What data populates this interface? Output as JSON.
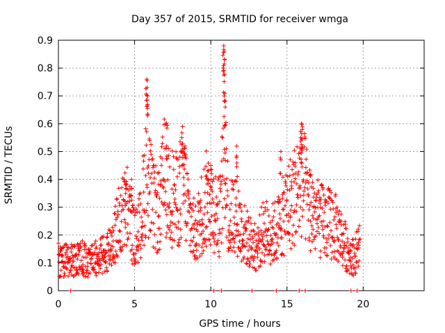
{
  "chart_data": {
    "type": "scatter",
    "title": "Day 357 of 2015, SRMTID for receiver wmga",
    "xlabel": "GPS time / hours",
    "ylabel": "SRMTID / TECUs",
    "xlim": [
      0,
      24
    ],
    "ylim": [
      0,
      0.9
    ],
    "xticks": [
      0,
      5,
      10,
      15,
      20
    ],
    "xtick_labels": [
      "0",
      "5",
      "10",
      "15",
      "20"
    ],
    "yticks": [
      0,
      0.1,
      0.2,
      0.3,
      0.4,
      0.5,
      0.6,
      0.7,
      0.8,
      0.9
    ],
    "ytick_labels": [
      "0",
      "0.1",
      "0.2",
      "0.3",
      "0.4",
      "0.5",
      "0.6",
      "0.7",
      "0.8",
      "0.9"
    ],
    "grid": true,
    "marker": "+",
    "marker_color": "#ff0000",
    "series": [
      {
        "name": "SRMTID",
        "envelope": [
          {
            "x": 0.0,
            "y": 0.1
          },
          {
            "x": 0.5,
            "y": 0.11
          },
          {
            "x": 1.0,
            "y": 0.11
          },
          {
            "x": 1.5,
            "y": 0.12
          },
          {
            "x": 2.0,
            "y": 0.1
          },
          {
            "x": 2.5,
            "y": 0.12
          },
          {
            "x": 3.0,
            "y": 0.13
          },
          {
            "x": 3.5,
            "y": 0.17
          },
          {
            "x": 4.0,
            "y": 0.25
          },
          {
            "x": 4.5,
            "y": 0.3
          },
          {
            "x": 5.0,
            "y": 0.18
          },
          {
            "x": 5.4,
            "y": 0.24
          },
          {
            "x": 5.8,
            "y": 0.45
          },
          {
            "x": 6.2,
            "y": 0.3
          },
          {
            "x": 6.6,
            "y": 0.28
          },
          {
            "x": 7.0,
            "y": 0.42
          },
          {
            "x": 7.4,
            "y": 0.34
          },
          {
            "x": 7.8,
            "y": 0.32
          },
          {
            "x": 8.2,
            "y": 0.4
          },
          {
            "x": 8.6,
            "y": 0.26
          },
          {
            "x": 9.0,
            "y": 0.2
          },
          {
            "x": 9.4,
            "y": 0.28
          },
          {
            "x": 9.8,
            "y": 0.34
          },
          {
            "x": 10.2,
            "y": 0.3
          },
          {
            "x": 10.6,
            "y": 0.26
          },
          {
            "x": 10.9,
            "y": 0.52
          },
          {
            "x": 11.2,
            "y": 0.24
          },
          {
            "x": 11.6,
            "y": 0.3
          },
          {
            "x": 12.0,
            "y": 0.22
          },
          {
            "x": 12.5,
            "y": 0.18
          },
          {
            "x": 13.0,
            "y": 0.15
          },
          {
            "x": 13.5,
            "y": 0.22
          },
          {
            "x": 14.0,
            "y": 0.2
          },
          {
            "x": 14.5,
            "y": 0.23
          },
          {
            "x": 15.0,
            "y": 0.3
          },
          {
            "x": 15.5,
            "y": 0.34
          },
          {
            "x": 16.0,
            "y": 0.4
          },
          {
            "x": 16.5,
            "y": 0.3
          },
          {
            "x": 17.0,
            "y": 0.26
          },
          {
            "x": 17.5,
            "y": 0.24
          },
          {
            "x": 18.0,
            "y": 0.24
          },
          {
            "x": 18.5,
            "y": 0.2
          },
          {
            "x": 19.0,
            "y": 0.14
          },
          {
            "x": 19.4,
            "y": 0.12
          },
          {
            "x": 19.8,
            "y": 0.17
          }
        ],
        "peaks": [
          {
            "x": 5.8,
            "y": 0.76
          },
          {
            "x": 5.82,
            "y": 0.73
          },
          {
            "x": 5.85,
            "y": 0.7
          },
          {
            "x": 10.85,
            "y": 0.88
          },
          {
            "x": 10.88,
            "y": 0.86
          },
          {
            "x": 10.9,
            "y": 0.83
          },
          {
            "x": 10.92,
            "y": 0.71
          },
          {
            "x": 10.95,
            "y": 0.66
          },
          {
            "x": 15.95,
            "y": 0.6
          },
          {
            "x": 16.0,
            "y": 0.58
          },
          {
            "x": 15.9,
            "y": 0.55
          },
          {
            "x": 7.1,
            "y": 0.52
          },
          {
            "x": 8.1,
            "y": 0.55
          },
          {
            "x": 8.3,
            "y": 0.52
          },
          {
            "x": 9.8,
            "y": 0.43
          },
          {
            "x": 10.0,
            "y": 0.45
          },
          {
            "x": 11.7,
            "y": 0.52
          },
          {
            "x": 14.6,
            "y": 0.5
          },
          {
            "x": 4.8,
            "y": 0.4
          },
          {
            "x": 4.4,
            "y": 0.38
          }
        ],
        "zeros": [
          0.8,
          10.2,
          10.7,
          12.7,
          14.3,
          15.8,
          16.2,
          19.2,
          19.6
        ]
      }
    ]
  }
}
